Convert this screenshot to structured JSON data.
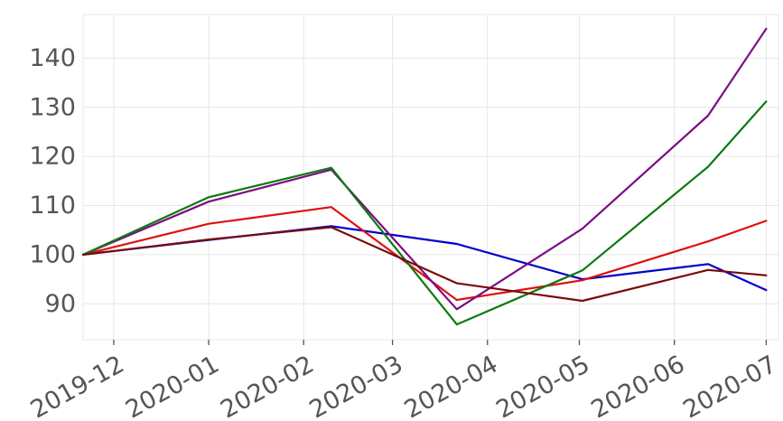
{
  "chart_data": {
    "type": "line",
    "title": "",
    "xlabel": "",
    "ylabel": "",
    "x_tick_labels": [
      "2019-12",
      "2020-01",
      "2020-02",
      "2020-03",
      "2020-04",
      "2020-05",
      "2020-06",
      "2020-07"
    ],
    "y_ticks": [
      90,
      100,
      110,
      120,
      130,
      140
    ],
    "ylim": [
      82.7,
      148.9
    ],
    "xlim": [
      "2019-11-21",
      "2020-07-05"
    ],
    "grid": true,
    "legend": "none",
    "x": [
      "2019-11-21",
      "2020-01-01",
      "2020-02-10",
      "2020-03-22",
      "2020-05-02",
      "2020-06-12",
      "2020-07-01"
    ],
    "series": [
      {
        "color": "#0000cc",
        "values": [
          100,
          103,
          105.8,
          102.2,
          95,
          98.1,
          92.8
        ]
      },
      {
        "color": "#dd1111",
        "values": [
          100,
          106.3,
          109.7,
          90.8,
          94.8,
          102.7,
          106.9
        ]
      },
      {
        "color": "#7b0c85",
        "values": [
          100,
          110.8,
          117.3,
          88.9,
          105.3,
          128.3,
          146
        ]
      },
      {
        "color": "#0c7a0c",
        "values": [
          100,
          111.7,
          117.7,
          85.8,
          96.8,
          117.9,
          131.2
        ]
      },
      {
        "color": "#7a0a0a",
        "values": [
          100,
          103.1,
          105.6,
          94.2,
          90.6,
          96.9,
          95.8
        ]
      }
    ]
  }
}
